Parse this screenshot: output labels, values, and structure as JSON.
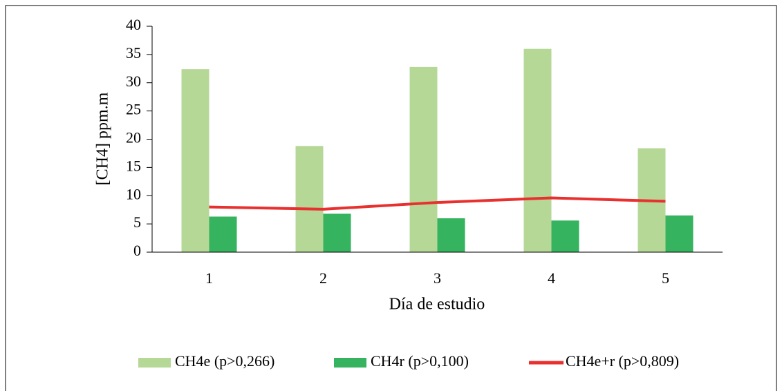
{
  "chart_data": {
    "type": "bar",
    "x_label": "Día de estudio",
    "y_label": "[CH4] ppm.m",
    "categories": [
      "1",
      "2",
      "3",
      "4",
      "5"
    ],
    "series": [
      {
        "name": "CH4e (p>0,266)",
        "color": "#b6d897",
        "type": "bar",
        "values": [
          32.4,
          18.8,
          32.8,
          36.0,
          18.4
        ]
      },
      {
        "name": "CH4r (p>0,100)",
        "color": "#36b35f",
        "type": "bar",
        "values": [
          6.3,
          6.8,
          6.0,
          5.6,
          6.5
        ]
      },
      {
        "name": "CH4e+r (p>0,809)",
        "color": "#e8302f",
        "type": "line",
        "values": [
          8.0,
          7.6,
          8.8,
          9.6,
          9.0
        ]
      }
    ],
    "ylim": [
      0,
      40
    ],
    "yticks": [
      0,
      5,
      10,
      15,
      20,
      25,
      30,
      35,
      40
    ],
    "grid": false,
    "legend": "bottom"
  }
}
